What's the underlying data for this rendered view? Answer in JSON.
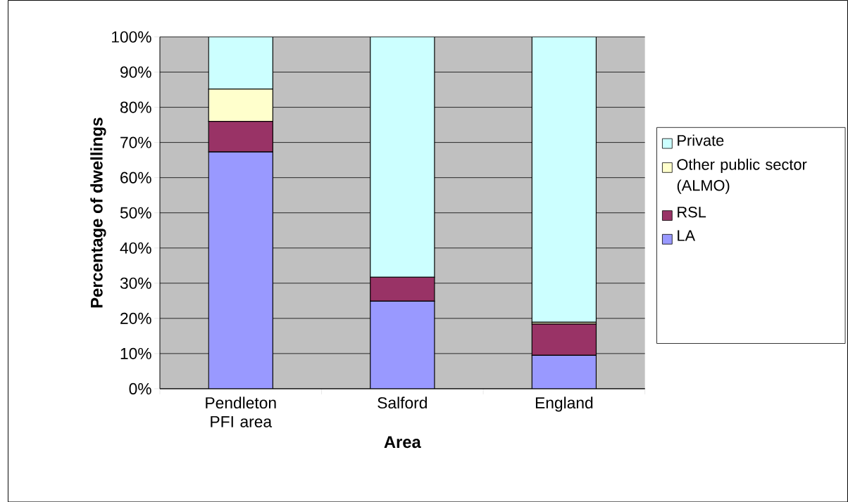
{
  "chart_data": {
    "type": "bar",
    "stacked": true,
    "xlabel": "Area",
    "ylabel": "Percentage of dwellings",
    "categories": [
      "Pendleton PFI area",
      "Salford",
      "England"
    ],
    "series": [
      {
        "name": "LA",
        "color": "#9999ff",
        "values": [
          67.3,
          24.9,
          9.5
        ]
      },
      {
        "name": "RSL",
        "color": "#993366",
        "values": [
          8.7,
          6.8,
          8.9
        ]
      },
      {
        "name": "Other public sector (ALMO)",
        "color": "#ffffcc",
        "values": [
          9.2,
          0,
          0.5
        ]
      },
      {
        "name": "Private",
        "color": "#ccffff",
        "values": [
          14.8,
          68.3,
          81.1
        ]
      }
    ],
    "ylim": [
      0,
      100
    ],
    "yticks": [
      {
        "value": 0,
        "label": "0%"
      },
      {
        "value": 10,
        "label": "10%"
      },
      {
        "value": 20,
        "label": "20%"
      },
      {
        "value": 30,
        "label": "30%"
      },
      {
        "value": 40,
        "label": "40%"
      },
      {
        "value": 50,
        "label": "50%"
      },
      {
        "value": 60,
        "label": "60%"
      },
      {
        "value": 70,
        "label": "70%"
      },
      {
        "value": 80,
        "label": "80%"
      },
      {
        "value": 90,
        "label": "90%"
      },
      {
        "value": 100,
        "label": "100%"
      }
    ],
    "grid": "y",
    "legend": "right"
  }
}
